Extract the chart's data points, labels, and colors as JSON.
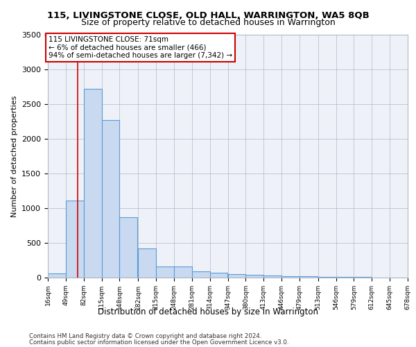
{
  "title": "115, LIVINGSTONE CLOSE, OLD HALL, WARRINGTON, WA5 8QB",
  "subtitle": "Size of property relative to detached houses in Warrington",
  "xlabel": "Distribution of detached houses by size in Warrington",
  "ylabel": "Number of detached properties",
  "footnote1": "Contains HM Land Registry data © Crown copyright and database right 2024.",
  "footnote2": "Contains public sector information licensed under the Open Government Licence v3.0.",
  "annotation_text": "115 LIVINGSTONE CLOSE: 71sqm\n← 6% of detached houses are smaller (466)\n94% of semi-detached houses are larger (7,342) →",
  "bar_color": "#c9d9f0",
  "bar_edge_color": "#5b9bd5",
  "background_color": "#eef2f8",
  "vline_color": "#cc0000",
  "vline_x": 71,
  "ylim": [
    0,
    3500
  ],
  "yticks": [
    0,
    500,
    1000,
    1500,
    2000,
    2500,
    3000,
    3500
  ],
  "bin_edges": [
    16,
    49,
    82,
    115,
    148,
    182,
    215,
    248,
    281,
    314,
    347,
    380,
    413,
    446,
    479,
    513,
    546,
    579,
    612,
    645,
    678
  ],
  "bin_labels": [
    "16sqm",
    "49sqm",
    "82sqm",
    "115sqm",
    "148sqm",
    "182sqm",
    "215sqm",
    "248sqm",
    "281sqm",
    "314sqm",
    "347sqm",
    "380sqm",
    "413sqm",
    "446sqm",
    "479sqm",
    "513sqm",
    "546sqm",
    "579sqm",
    "612sqm",
    "645sqm",
    "678sqm"
  ],
  "bar_heights": [
    60,
    1110,
    2720,
    2270,
    875,
    420,
    165,
    160,
    90,
    70,
    55,
    45,
    30,
    25,
    20,
    15,
    10,
    8,
    5,
    5
  ]
}
